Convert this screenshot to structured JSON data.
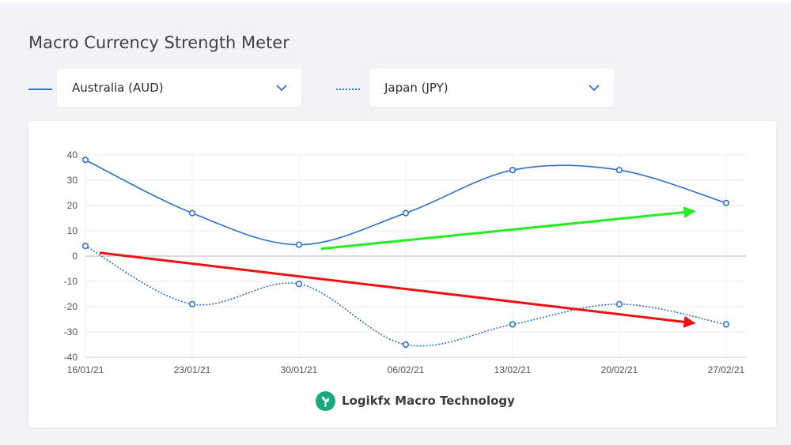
{
  "header": {
    "title": "Macro Currency Strength Meter"
  },
  "selectors": {
    "left": {
      "value": "Australia (AUD)",
      "line_style": "solid"
    },
    "right": {
      "value": "Japan (JPY)",
      "line_style": "dotted"
    }
  },
  "footer": {
    "brand": "Logikfx Macro Technology"
  },
  "colors": {
    "series": "#2f6fd0",
    "up_arrow": "#22ee22",
    "down_arrow": "#ee1111",
    "brand": "#18a97c"
  },
  "chart_data": {
    "type": "line",
    "x": [
      "16/01/21",
      "23/01/21",
      "30/01/21",
      "06/02/21",
      "13/02/21",
      "20/02/21",
      "27/02/21"
    ],
    "ylim": [
      -40,
      40
    ],
    "yticks": [
      40,
      30,
      20,
      10,
      0,
      -10,
      -20,
      -30,
      -40
    ],
    "grid": true,
    "series": [
      {
        "name": "Australia (AUD)",
        "style": "solid",
        "values": [
          38,
          17,
          4.5,
          17,
          34,
          34,
          21
        ]
      },
      {
        "name": "Japan (JPY)",
        "style": "dotted",
        "values": [
          4,
          -19,
          -11,
          -35,
          -27,
          -19,
          -27
        ]
      }
    ],
    "annotations": [
      {
        "type": "arrow",
        "color": "green",
        "from": [
          "30/01/21",
          2
        ],
        "to": [
          "27/02/21",
          19
        ]
      },
      {
        "type": "arrow",
        "color": "red",
        "from": [
          "16/01/21",
          2
        ],
        "to": [
          "27/02/21",
          -28
        ]
      }
    ]
  }
}
